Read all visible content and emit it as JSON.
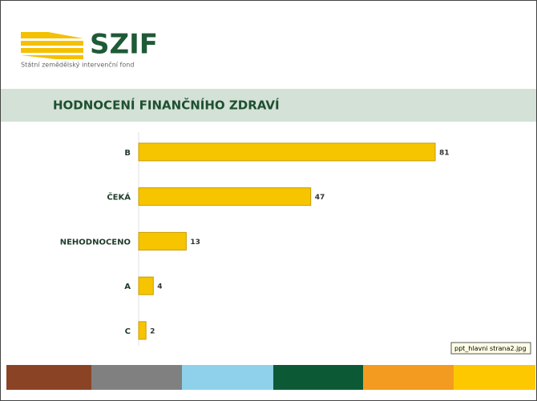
{
  "header": {
    "logo": "SZIF",
    "logo_subtitle": "Státní zemědělský intervenční fond"
  },
  "tooltip": "ppt_hlavni strana2.jpg",
  "chart_data": {
    "type": "bar",
    "orientation": "horizontal",
    "title": "HODNOCENÍ FINANČNÍHO ZDRAVÍ",
    "categories": [
      "B",
      "ČEKÁ",
      "NEHODNOCENO",
      "A",
      "C"
    ],
    "values": [
      81,
      47,
      13,
      4,
      2
    ],
    "color": "#f6c500"
  }
}
